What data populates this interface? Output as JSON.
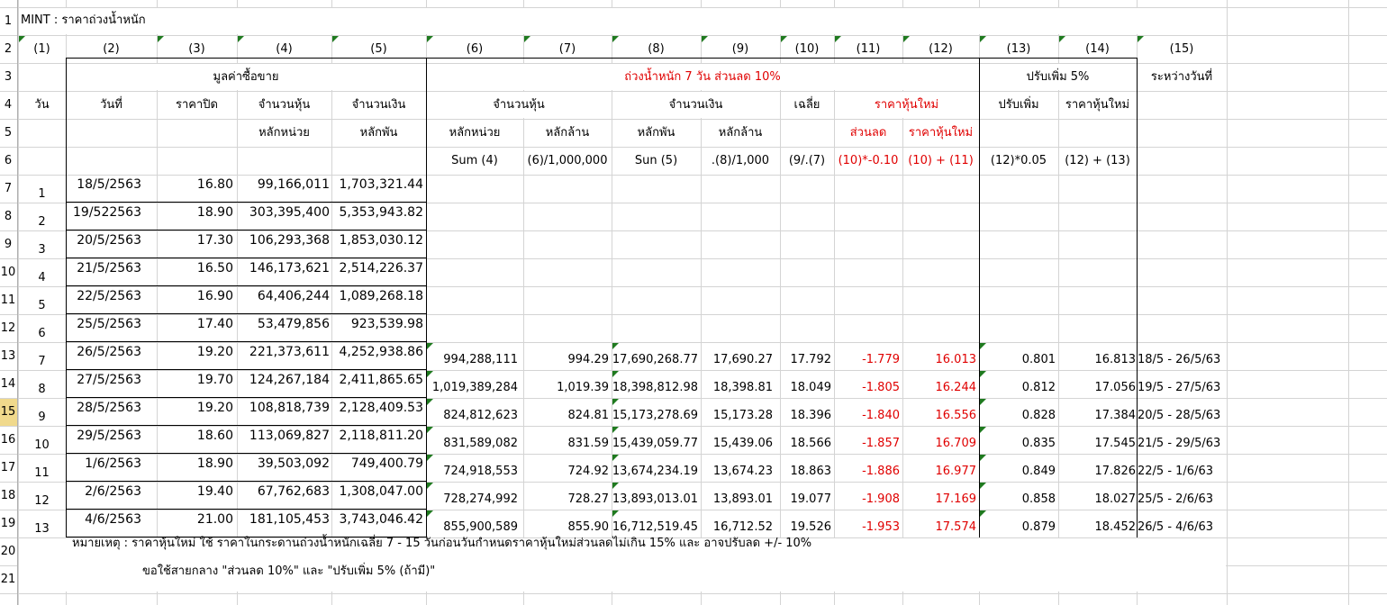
{
  "sheet": {
    "title": "MINT : ราคาถ่วงน้ำหนัก",
    "row_numbers": [
      "1",
      "2",
      "3",
      "4",
      "5",
      "6",
      "7",
      "8",
      "9",
      "10",
      "11",
      "12",
      "13",
      "14",
      "15",
      "16",
      "17",
      "18",
      "19",
      "20",
      "21"
    ],
    "selected_row": "15",
    "col_nums": [
      "(1)",
      "(2)",
      "(3)",
      "(4)",
      "(5)",
      "(6)",
      "(7)",
      "(8)",
      "(9)",
      "(10)",
      "(11)",
      "(12)",
      "(13)",
      "(14)",
      "(15)"
    ],
    "headers": {
      "group_trade": "มูลค่าซื้อขาย",
      "group_weighted": "ถ่วงน้ำหนัก   7 วัน   ส่วนลด   10%",
      "group_adjust": "ปรับเพิ่ม   5%",
      "group_period": "ระหว่างวันที่",
      "day": "วัน",
      "date": "วันที่",
      "close": "ราคาปิด",
      "shares": "จำนวนหุ้น",
      "amount": "จำนวนเงิน",
      "shares_units": "หลักหน่วย",
      "amount_thousands": "หลักพัน",
      "w_shares": "จำนวนหุ้น",
      "w_amount": "จำนวนเงิน",
      "avg": "เฉลี่ย",
      "new_price_group": "ราคาหุ้นใหม่",
      "adj_up": "ปรับเพิ่ม",
      "adj_new_price": "ราคาหุ้นใหม่",
      "w_shares_units": "หลักหน่วย",
      "w_shares_millions": "หลักล้าน",
      "w_amount_thousands": "หลักพัน",
      "w_amount_millions": "หลักล้าน",
      "discount": "ส่วนลด",
      "new_price": "ราคาหุ้นใหม่",
      "f6": "Sum (4)",
      "f7": "(6)/1,000,000",
      "f8": "Sun (5)",
      "f9": ".(8)/1,000",
      "f10": "(9/.(7)",
      "f11": "(10)*-0.10",
      "f12": "(10) + (11)",
      "f13": "(12)*0.05",
      "f14": "(12) + (13)"
    },
    "rows": [
      {
        "day": "1",
        "date": "18/5/2563",
        "close": "16.80",
        "shares": "99,166,011",
        "amount": "1,703,321.44"
      },
      {
        "day": "2",
        "date": "19/522563",
        "close": "18.90",
        "shares": "303,395,400",
        "amount": "5,353,943.82"
      },
      {
        "day": "3",
        "date": "20/5/2563",
        "close": "17.30",
        "shares": "106,293,368",
        "amount": "1,853,030.12"
      },
      {
        "day": "4",
        "date": "21/5/2563",
        "close": "16.50",
        "shares": "146,173,621",
        "amount": "2,514,226.37"
      },
      {
        "day": "5",
        "date": "22/5/2563",
        "close": "16.90",
        "shares": "64,406,244",
        "amount": "1,089,268.18"
      },
      {
        "day": "6",
        "date": "25/5/2563",
        "close": "17.40",
        "shares": "53,479,856",
        "amount": "923,539.98"
      },
      {
        "day": "7",
        "date": "26/5/2563",
        "close": "19.20",
        "shares": "221,373,611",
        "amount": "4,252,938.86",
        "w_shares": "994,288,111",
        "w_shares_m": "994.29",
        "w_amount": "17,690,268.77",
        "w_amount_m": "17,690.27",
        "avg": "17.792",
        "disc": "-1.779",
        "newp": "16.013",
        "adj": "0.801",
        "adjp": "16.813",
        "period": "18/5 - 26/5/63"
      },
      {
        "day": "8",
        "date": "27/5/2563",
        "close": "19.70",
        "shares": "124,267,184",
        "amount": "2,411,865.65",
        "w_shares": "1,019,389,284",
        "w_shares_m": "1,019.39",
        "w_amount": "18,398,812.98",
        "w_amount_m": "18,398.81",
        "avg": "18.049",
        "disc": "-1.805",
        "newp": "16.244",
        "adj": "0.812",
        "adjp": "17.056",
        "period": "19/5 - 27/5/63"
      },
      {
        "day": "9",
        "date": "28/5/2563",
        "close": "19.20",
        "shares": "108,818,739",
        "amount": "2,128,409.53",
        "w_shares": "824,812,623",
        "w_shares_m": "824.81",
        "w_amount": "15,173,278.69",
        "w_amount_m": "15,173.28",
        "avg": "18.396",
        "disc": "-1.840",
        "newp": "16.556",
        "adj": "0.828",
        "adjp": "17.384",
        "period": "20/5 - 28/5/63"
      },
      {
        "day": "10",
        "date": "29/5/2563",
        "close": "18.60",
        "shares": "113,069,827",
        "amount": "2,118,811.20",
        "w_shares": "831,589,082",
        "w_shares_m": "831.59",
        "w_amount": "15,439,059.77",
        "w_amount_m": "15,439.06",
        "avg": "18.566",
        "disc": "-1.857",
        "newp": "16.709",
        "adj": "0.835",
        "adjp": "17.545",
        "period": "21/5 - 29/5/63"
      },
      {
        "day": "11",
        "date": "1/6/2563",
        "close": "18.90",
        "shares": "39,503,092",
        "amount": "749,400.79",
        "w_shares": "724,918,553",
        "w_shares_m": "724.92",
        "w_amount": "13,674,234.19",
        "w_amount_m": "13,674.23",
        "avg": "18.863",
        "disc": "-1.886",
        "newp": "16.977",
        "adj": "0.849",
        "adjp": "17.826",
        "period": "22/5 - 1/6/63"
      },
      {
        "day": "12",
        "date": "2/6/2563",
        "close": "19.40",
        "shares": "67,762,683",
        "amount": "1,308,047.00",
        "w_shares": "728,274,992",
        "w_shares_m": "728.27",
        "w_amount": "13,893,013.01",
        "w_amount_m": "13,893.01",
        "avg": "19.077",
        "disc": "-1.908",
        "newp": "17.169",
        "adj": "0.858",
        "adjp": "18.027",
        "period": "25/5 - 2/6/63"
      },
      {
        "day": "13",
        "date": "4/6/2563",
        "close": "21.00",
        "shares": "181,105,453",
        "amount": "3,743,046.42",
        "w_shares": "855,900,589",
        "w_shares_m": "855.90",
        "w_amount": "16,712,519.45",
        "w_amount_m": "16,712.52",
        "avg": "19.526",
        "disc": "-1.953",
        "newp": "17.574",
        "adj": "0.879",
        "adjp": "18.452",
        "period": "26/5 - 4/6/63"
      }
    ],
    "note1": "หมายเหตุ : ราคาหุ้นใหม่ ใช้ ราคาในกระดานถ่วงน้ำหนักเฉลี่ย 7 - 15 วันก่อนวันกำหนดราคาหุ้นใหม่ส่วนลดไม่เกิน 15% และ อาจปรับลด +/- 10%",
    "note2": "ขอใช้สายกลาง \"ส่วนลด 10%\" และ \"ปรับเพิ่ม 5% (ถ้ามี)\"",
    "colors": {
      "grid": "#d4d4d4",
      "red": "#e00000",
      "flag": "#1f7a1f",
      "row_header_selected": "#f0d98c"
    }
  }
}
